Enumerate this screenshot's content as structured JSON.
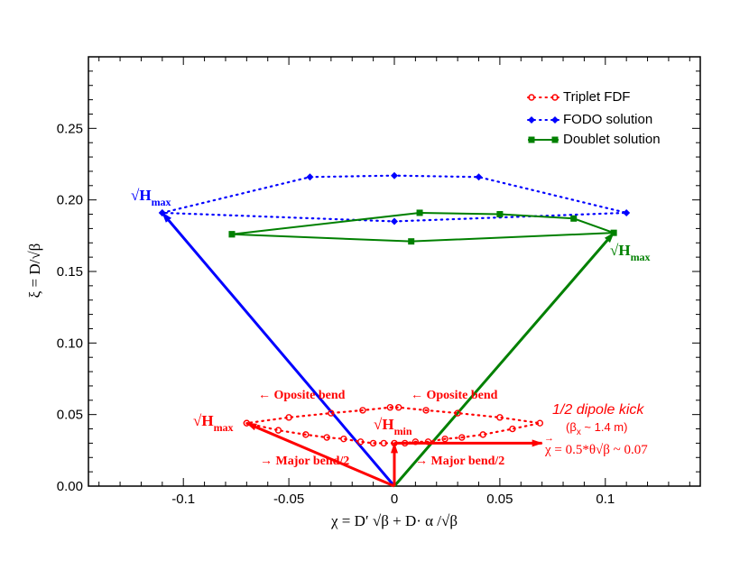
{
  "chart_data": {
    "type": "scatter",
    "title": "",
    "xlabel": "χ = D′ √β + D· α /√β",
    "ylabel": "ξ = D/√β",
    "xlim": [
      -0.145,
      0.145
    ],
    "ylim": [
      0.0,
      0.3
    ],
    "x_ticks": [
      -0.1,
      -0.05,
      0,
      0.05,
      0.1
    ],
    "x_tick_labels": [
      "-0.1",
      "-0.05",
      "0",
      "0.05",
      "0.1"
    ],
    "y_ticks": [
      0.0,
      0.05,
      0.1,
      0.15,
      0.2,
      0.25
    ],
    "y_tick_labels": [
      "0.00",
      "0.05",
      "0.10",
      "0.15",
      "0.20",
      "0.25"
    ],
    "legend_position": "top-right",
    "colors": {
      "triplet": "#ff0000",
      "fodo": "#0000ff",
      "doublet": "#008000"
    },
    "series": [
      {
        "name": "Triplet FDF",
        "style": "dotted-circles",
        "points": [
          [
            -0.07,
            0.044
          ],
          [
            -0.055,
            0.039
          ],
          [
            -0.042,
            0.036
          ],
          [
            -0.032,
            0.034
          ],
          [
            -0.024,
            0.033
          ],
          [
            -0.016,
            0.031
          ],
          [
            -0.01,
            0.03
          ],
          [
            -0.005,
            0.03
          ],
          [
            0.0,
            0.03
          ],
          [
            0.005,
            0.03
          ],
          [
            0.01,
            0.031
          ],
          [
            0.016,
            0.031
          ],
          [
            0.024,
            0.033
          ],
          [
            0.032,
            0.034
          ],
          [
            0.042,
            0.036
          ],
          [
            0.056,
            0.04
          ],
          [
            0.069,
            0.044
          ],
          [
            0.05,
            0.048
          ],
          [
            0.03,
            0.051
          ],
          [
            0.015,
            0.053
          ],
          [
            0.002,
            0.055
          ],
          [
            -0.002,
            0.055
          ],
          [
            -0.015,
            0.053
          ],
          [
            -0.03,
            0.051
          ],
          [
            -0.05,
            0.048
          ],
          [
            -0.07,
            0.044
          ]
        ]
      },
      {
        "name": "FODO solution",
        "style": "dotted-diamonds",
        "points": [
          [
            -0.11,
            0.191
          ],
          [
            -0.04,
            0.216
          ],
          [
            0.0,
            0.217
          ],
          [
            0.04,
            0.216
          ],
          [
            0.11,
            0.191
          ],
          [
            0.0,
            0.185
          ],
          [
            -0.11,
            0.191
          ]
        ]
      },
      {
        "name": "Doublet solution",
        "style": "solid-squares",
        "points": [
          [
            -0.077,
            0.176
          ],
          [
            0.012,
            0.191
          ],
          [
            0.05,
            0.19
          ],
          [
            0.085,
            0.187
          ],
          [
            0.104,
            0.177
          ],
          [
            0.008,
            0.171
          ],
          [
            -0.077,
            0.176
          ]
        ]
      }
    ],
    "arrows": [
      {
        "name": "blue-hmax-arrow",
        "color": "#0000ff",
        "from": [
          0.0,
          0.0
        ],
        "to": [
          -0.11,
          0.191
        ]
      },
      {
        "name": "green-hmax-arrow",
        "color": "#008000",
        "from": [
          0.0,
          0.0
        ],
        "to": [
          0.104,
          0.177
        ]
      },
      {
        "name": "red-hmax-arrow",
        "color": "#ff0000",
        "from": [
          0.0,
          0.0
        ],
        "to": [
          -0.07,
          0.044
        ]
      },
      {
        "name": "red-hmin-arrow",
        "color": "#ff0000",
        "from": [
          0.0,
          0.0
        ],
        "to": [
          0.0,
          0.03
        ]
      },
      {
        "name": "red-kick-arrow",
        "color": "#ff0000",
        "from": [
          0.0,
          0.03
        ],
        "to": [
          0.07,
          0.03
        ]
      }
    ],
    "annotations": {
      "blue_hmax": "√H",
      "blue_hmax_sub": "max",
      "green_hmax": "√H",
      "green_hmax_sub": "max",
      "red_hmax": "√H",
      "red_hmax_sub": "max",
      "red_hmin": "√H",
      "red_hmin_sub": "min",
      "oposite_left": "← Oposite bend",
      "oposite_right": "← Oposite bend",
      "major_left": "→ Major bend/2",
      "major_right": "→ Major bend/2",
      "kick_title": "1/2 dipole kick",
      "kick_beta": "(β",
      "kick_beta_sub": "x",
      "kick_beta_rest": " ~ 1.4 m)",
      "kick_arrow": "→",
      "kick_formula": "χ = 0.5*θ√β ~ 0.07"
    }
  }
}
